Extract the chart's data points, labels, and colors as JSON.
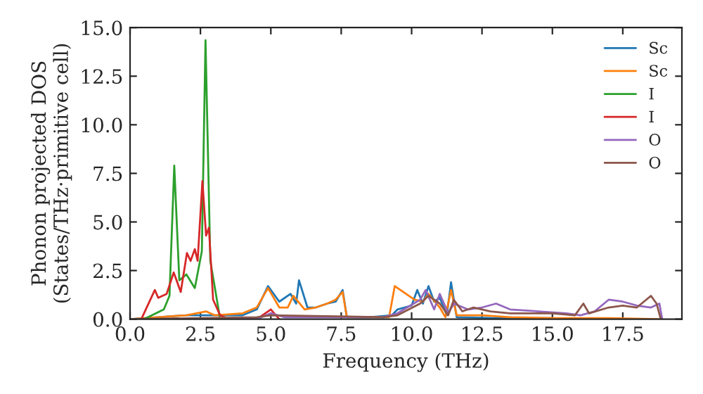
{
  "chart_data": {
    "type": "line",
    "xlabel": "Frequency (THz)",
    "ylabel": "Phonon projected DOS\n(States/THz·primitive cell)",
    "xlim": [
      0,
      19.6
    ],
    "ylim": [
      0,
      15
    ],
    "xticks": [
      {
        "value": 0,
        "label": "0.0"
      },
      {
        "value": 2.5,
        "label": "2.5"
      },
      {
        "value": 5,
        "label": "5.0"
      },
      {
        "value": 7.5,
        "label": "7.5"
      },
      {
        "value": 10,
        "label": "10.0"
      },
      {
        "value": 12.5,
        "label": "12.5"
      },
      {
        "value": 15,
        "label": "15.0"
      },
      {
        "value": 17.5,
        "label": "17.5"
      }
    ],
    "yticks": [
      {
        "value": 0,
        "label": "0.0"
      },
      {
        "value": 2.5,
        "label": "2.5"
      },
      {
        "value": 5,
        "label": "5.0"
      },
      {
        "value": 7.5,
        "label": "7.5"
      },
      {
        "value": 10,
        "label": "10.0"
      },
      {
        "value": 12.5,
        "label": "12.5"
      },
      {
        "value": 15,
        "label": "15.0"
      }
    ],
    "grid": false,
    "legend": "top right",
    "line_style": "solid",
    "marker": "none",
    "series": [
      {
        "name": "Sc",
        "color": "#1f77b4",
        "x": [
          0,
          1,
          2,
          3,
          4,
          4.5,
          4.9,
          5.3,
          5.7,
          5.9,
          6.0,
          6.3,
          6.6,
          7.0,
          7.3,
          7.55,
          7.7,
          8.5,
          9.3,
          9.5,
          10.0,
          10.2,
          10.4,
          10.6,
          10.8,
          11.0,
          11.25,
          11.4,
          11.6,
          13,
          15
        ],
        "values": [
          0,
          0.1,
          0.2,
          0.2,
          0.2,
          0.5,
          1.7,
          0.9,
          1.3,
          0.8,
          2.0,
          0.6,
          0.6,
          0.8,
          0.9,
          1.5,
          0.1,
          0.1,
          0.2,
          0.5,
          0.7,
          1.5,
          0.8,
          1.7,
          0.9,
          1.1,
          0.2,
          1.9,
          0.1,
          0.05,
          0.05
        ]
      },
      {
        "name": "Sc",
        "color": "#ff7f0e",
        "x": [
          0,
          1,
          2,
          2.7,
          3,
          4,
          4.5,
          4.9,
          5.3,
          5.6,
          5.8,
          6.2,
          6.6,
          7.0,
          7.3,
          7.55,
          7.7,
          8.5,
          9.2,
          9.4,
          9.8,
          10.1,
          10.4,
          10.6,
          11.0,
          11.2,
          11.4,
          11.6,
          12.5,
          13.5,
          15,
          17,
          18.8
        ],
        "values": [
          0,
          0.1,
          0.2,
          0.4,
          0.2,
          0.3,
          0.6,
          1.6,
          0.6,
          0.6,
          1.2,
          0.5,
          0.6,
          0.8,
          1.0,
          1.4,
          0.1,
          0.1,
          0.1,
          1.7,
          1.3,
          1.0,
          0.9,
          1.3,
          0.6,
          0.1,
          1.5,
          0.2,
          0.2,
          0.1,
          0.05,
          0.05,
          0
        ]
      },
      {
        "name": "I",
        "color": "#2ca02c",
        "x": [
          0,
          0.5,
          1.2,
          1.4,
          1.57,
          1.75,
          2.0,
          2.3,
          2.55,
          2.68,
          2.85,
          3.2
        ],
        "values": [
          0,
          0,
          0.5,
          1.2,
          7.9,
          2.0,
          2.3,
          1.6,
          3.5,
          14.35,
          3.0,
          0
        ]
      },
      {
        "name": "I",
        "color": "#d62728",
        "x": [
          0,
          0.4,
          0.88,
          1.0,
          1.3,
          1.55,
          1.8,
          2.02,
          2.15,
          2.3,
          2.4,
          2.57,
          2.7,
          2.8,
          2.95,
          3.2,
          3.5,
          4.5,
          5.0,
          5.3
        ],
        "values": [
          0,
          0,
          1.5,
          1.1,
          1.3,
          2.4,
          1.4,
          3.4,
          3.0,
          3.6,
          3.0,
          7.1,
          4.3,
          4.7,
          1.0,
          0.2,
          0,
          0,
          0.5,
          0
        ]
      },
      {
        "name": "O",
        "color": "#9467bd",
        "x": [
          0,
          4.5,
          5,
          5.5,
          9,
          9.5,
          10.3,
          10.5,
          10.8,
          11.0,
          11.3,
          11.5,
          12,
          12.5,
          13,
          13.5,
          14.5,
          15.5,
          16,
          16.5,
          17,
          17.5,
          18,
          18.5,
          18.8,
          18.9
        ],
        "values": [
          0,
          0,
          0.3,
          0.1,
          0.1,
          0.3,
          1.0,
          1.5,
          0.5,
          1.3,
          0.3,
          0.8,
          0.5,
          0.6,
          0.8,
          0.5,
          0.4,
          0.3,
          0.2,
          0.4,
          1.0,
          0.9,
          0.7,
          0.6,
          0.8,
          0
        ]
      },
      {
        "name": "O",
        "color": "#8c564b",
        "x": [
          0,
          4.5,
          5,
          9,
          9.5,
          10.3,
          10.6,
          11.0,
          11.3,
          11.5,
          11.8,
          12.2,
          12.8,
          13.5,
          15,
          15.8,
          16.1,
          16.3,
          17,
          17.5,
          18,
          18.5,
          18.7,
          18.85
        ],
        "values": [
          0,
          0.1,
          0.2,
          0.1,
          0.2,
          0.8,
          1.2,
          0.8,
          0.2,
          1.0,
          0.4,
          0.6,
          0.4,
          0.3,
          0.3,
          0.2,
          0.8,
          0.3,
          0.6,
          0.7,
          0.6,
          1.2,
          0.8,
          0
        ]
      }
    ]
  }
}
